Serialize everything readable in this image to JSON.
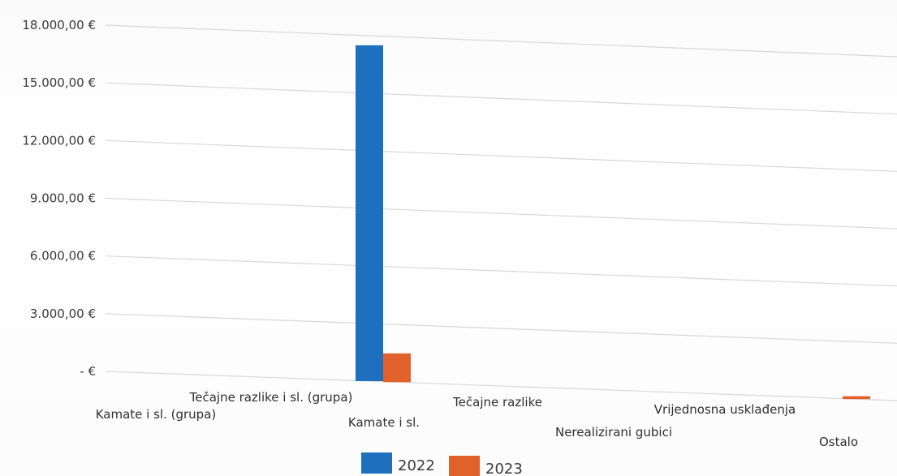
{
  "chart_data": {
    "type": "bar",
    "title": "",
    "xlabel": "",
    "ylabel": "",
    "categories": [
      "Kamate i sl. (grupa)",
      "Tečajne razlike i sl. (grupa)",
      "Kamate i sl.",
      "Tečajne razlike",
      "Nerealizirani gubici",
      "Vrijednosna usklađenja",
      "Ostalo"
    ],
    "series": [
      {
        "name": "2022",
        "color": "#1f6fbf",
        "values": [
          0,
          0,
          17500,
          0,
          0,
          0,
          0
        ]
      },
      {
        "name": "2023",
        "color": "#e0622a",
        "values": [
          0,
          0,
          1500,
          0,
          0,
          0,
          150
        ]
      }
    ],
    "ylim": [
      0,
      18000
    ],
    "yticks": [
      0,
      3000,
      6000,
      9000,
      12000,
      15000,
      18000
    ],
    "ytick_labels": [
      "-  €",
      "3.000,00 €",
      "6.000,00 €",
      "9.000,00 €",
      "12.000,00 €",
      "15.000,00 €",
      "18.000,00 €"
    ],
    "grid": true,
    "legend": {
      "position": "bottom",
      "entries": [
        "2022",
        "2023"
      ]
    }
  }
}
